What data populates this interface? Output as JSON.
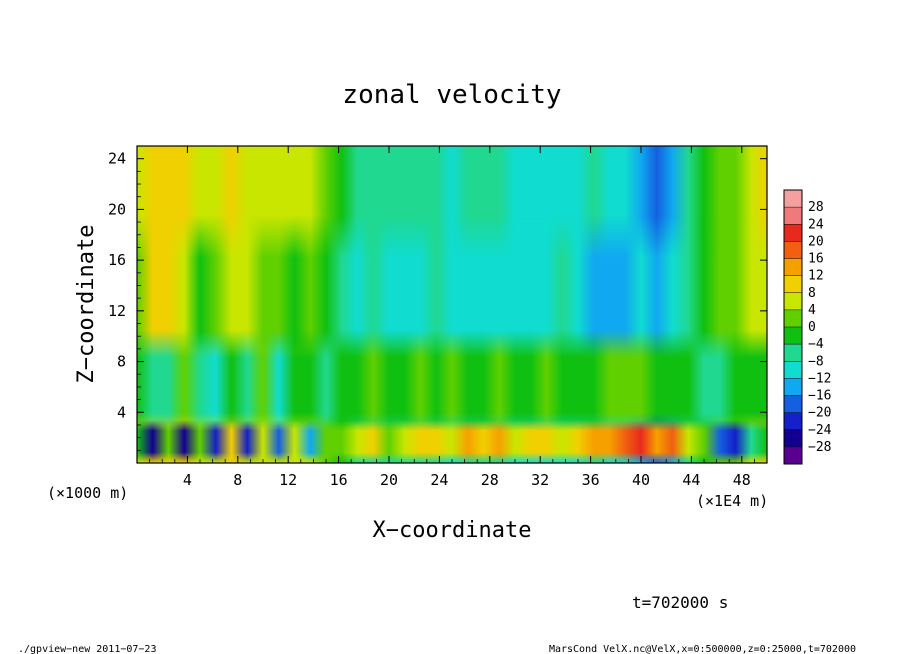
{
  "chart_data": {
    "type": "heatmap",
    "title": "zonal velocity",
    "xlabel": "X−coordinate",
    "ylabel": "Z−coordinate",
    "x_unit_label": "(×1E4 m)",
    "y_unit_label": "(×1000 m)",
    "xlim": [
      0,
      50
    ],
    "ylim": [
      0,
      25
    ],
    "x_ticks": [
      "4",
      "8",
      "12",
      "16",
      "20",
      "24",
      "28",
      "32",
      "36",
      "40",
      "44",
      "48"
    ],
    "x_tick_values": [
      4,
      8,
      12,
      16,
      20,
      24,
      28,
      32,
      36,
      40,
      44,
      48
    ],
    "y_ticks": [
      "4",
      "8",
      "12",
      "16",
      "20",
      "24"
    ],
    "y_tick_values": [
      4,
      8,
      12,
      16,
      20,
      24
    ],
    "colorbar": {
      "labels": [
        "28",
        "24",
        "20",
        "16",
        "12",
        "8",
        "4",
        "0",
        "−4",
        "−8",
        "−12",
        "−16",
        "−20",
        "−24",
        "−28"
      ],
      "levels": [
        28,
        24,
        20,
        16,
        12,
        8,
        4,
        0,
        -4,
        -8,
        -12,
        -16,
        -20,
        -24,
        -28
      ],
      "colors": [
        "#f07a7a",
        "#e82a1c",
        "#f06010",
        "#f6a000",
        "#f0d000",
        "#c8e600",
        "#60d000",
        "#10c010",
        "#20d890",
        "#10dcd0",
        "#10a8f0",
        "#1460e0",
        "#1420c8",
        "#140090",
        "#5a0090"
      ]
    },
    "columns_x": [
      0,
      1.25,
      2.5,
      3.75,
      5,
      6.25,
      7.5,
      8.75,
      10,
      11.25,
      12.5,
      13.75,
      15,
      16.25,
      17.5,
      18.75,
      20,
      21.25,
      22.5,
      23.75,
      25,
      26.25,
      27.5,
      28.75,
      30,
      31.25,
      32.5,
      33.75,
      35,
      36.25,
      37.5,
      38.75,
      40,
      41.25,
      42.5,
      43.75,
      45,
      46.25,
      47.5,
      48.75,
      50
    ],
    "column_velocity_upper": [
      10,
      13,
      14,
      12,
      10,
      11,
      12,
      11,
      9,
      8,
      8,
      9,
      7,
      1,
      -2,
      -1,
      -4,
      -3,
      -4,
      -3,
      -5,
      -4,
      -3,
      -4,
      -5,
      -7,
      -6,
      -5,
      -5,
      -4,
      -5,
      -6,
      -10,
      -13,
      -9,
      -2,
      3,
      5,
      6,
      9,
      12
    ],
    "column_velocity_mid": [
      6,
      12,
      14,
      8,
      3,
      5,
      8,
      10,
      5,
      4,
      3,
      5,
      2,
      -2,
      -6,
      -4,
      -6,
      -5,
      -7,
      -4,
      -6,
      -5,
      -5,
      -6,
      -8,
      -7,
      -6,
      -4,
      -6,
      -9,
      -11,
      -12,
      -8,
      -10,
      -6,
      -3,
      2,
      4,
      6,
      8,
      10
    ],
    "column_velocity_low": [
      2,
      -3,
      -1,
      6,
      -2,
      -6,
      3,
      -4,
      5,
      -5,
      1,
      3,
      -2,
      0,
      2,
      4,
      1,
      3,
      4,
      2,
      5,
      1,
      2,
      6,
      3,
      1,
      4,
      2,
      1,
      3,
      5,
      6,
      4,
      2,
      3,
      1,
      -3,
      -2,
      2,
      0,
      3
    ],
    "column_velocity_bottom": [
      2,
      -24,
      4,
      -22,
      6,
      -18,
      12,
      -20,
      8,
      -16,
      10,
      -12,
      6,
      4,
      8,
      14,
      6,
      10,
      12,
      14,
      8,
      16,
      12,
      18,
      10,
      14,
      12,
      8,
      14,
      16,
      18,
      20,
      24,
      16,
      22,
      10,
      6,
      -16,
      -18,
      -4,
      2
    ],
    "footer_time": "t=702000 s",
    "footer_left": "./gpview−new   2011−07−23",
    "footer_right": "MarsCond_VelX.nc@VelX,x=0:500000,z=0:25000,t=702000"
  }
}
